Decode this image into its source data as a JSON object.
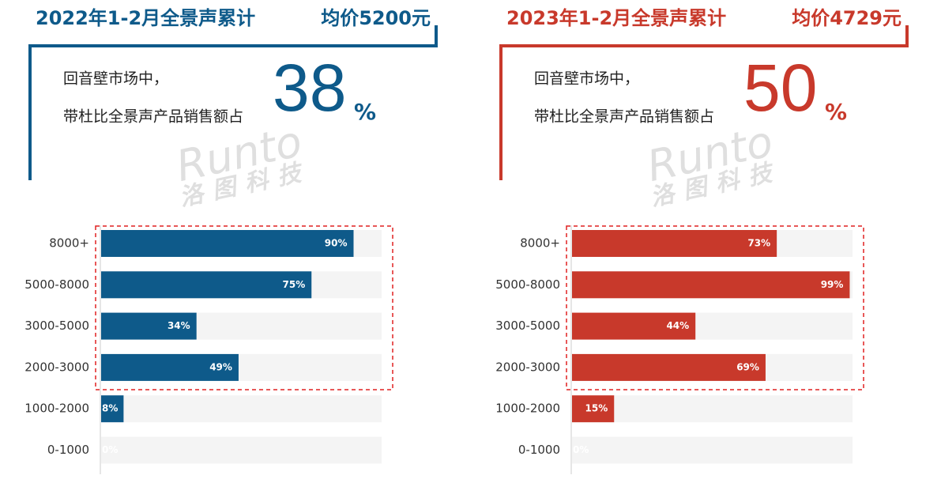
{
  "chart_data": [
    {
      "type": "bar",
      "orientation": "horizontal",
      "title": "2022年1-2月全景声累计",
      "subtitle": "均价5200元",
      "description": [
        "回音壁市场中，",
        "带杜比全景声产品销售额占"
      ],
      "headline": {
        "value": 38,
        "unit": "%"
      },
      "watermark": [
        "Runto",
        "洛图科技"
      ],
      "categories": [
        "8000+",
        "5000-8000",
        "3000-5000",
        "2000-3000",
        "1000-2000",
        "0-1000"
      ],
      "values": [
        90,
        75,
        34,
        49,
        8,
        0
      ],
      "value_labels": [
        "90%",
        "75%",
        "34%",
        "49%",
        "8%",
        "0%"
      ],
      "color": "#0e5a8a",
      "xlim": [
        0,
        100
      ]
    },
    {
      "type": "bar",
      "orientation": "horizontal",
      "title": "2023年1-2月全景声累计",
      "subtitle": "均价4729元",
      "description": [
        "回音壁市场中，",
        "带杜比全景声产品销售额占"
      ],
      "headline": {
        "value": 50,
        "unit": "%"
      },
      "watermark": [
        "Runto",
        "洛图科技"
      ],
      "categories": [
        "8000+",
        "5000-8000",
        "3000-5000",
        "2000-3000",
        "1000-2000",
        "0-1000"
      ],
      "values": [
        73,
        99,
        44,
        69,
        15,
        0
      ],
      "value_labels": [
        "73%",
        "99%",
        "44%",
        "69%",
        "15%",
        "0%"
      ],
      "color": "#c8392b",
      "xlim": [
        0,
        100
      ]
    }
  ]
}
